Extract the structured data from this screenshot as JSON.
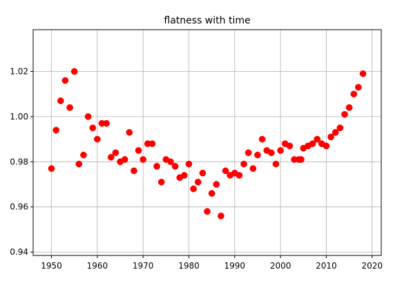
{
  "chart_data": {
    "type": "scatter",
    "title": "flatness with time",
    "xlabel": "",
    "ylabel": "",
    "xlim": [
      1946,
      2022
    ],
    "ylim": [
      0.9385,
      1.0385
    ],
    "xticks": [
      1950,
      1960,
      1970,
      1980,
      1990,
      2000,
      2010,
      2020
    ],
    "yticks": [
      0.94,
      0.96,
      0.98,
      1.0,
      1.02
    ],
    "ytick_labels": [
      "0.94",
      "0.96",
      "0.98",
      "1.00",
      "1.02"
    ],
    "grid": true,
    "series": [
      {
        "color": "#ff0000",
        "marker": "circle",
        "points": [
          [
            1950,
            0.977
          ],
          [
            1951,
            0.994
          ],
          [
            1952,
            1.007
          ],
          [
            1953,
            1.016
          ],
          [
            1954,
            1.004
          ],
          [
            1955,
            1.02
          ],
          [
            1956,
            0.979
          ],
          [
            1957,
            0.983
          ],
          [
            1958,
            1.0
          ],
          [
            1959,
            0.995
          ],
          [
            1960,
            0.99
          ],
          [
            1961,
            0.997
          ],
          [
            1962,
            0.997
          ],
          [
            1963,
            0.982
          ],
          [
            1964,
            0.984
          ],
          [
            1965,
            0.98
          ],
          [
            1966,
            0.981
          ],
          [
            1967,
            0.993
          ],
          [
            1968,
            0.976
          ],
          [
            1969,
            0.985
          ],
          [
            1970,
            0.981
          ],
          [
            1971,
            0.988
          ],
          [
            1972,
            0.988
          ],
          [
            1973,
            0.978
          ],
          [
            1974,
            0.971
          ],
          [
            1975,
            0.981
          ],
          [
            1976,
            0.98
          ],
          [
            1977,
            0.978
          ],
          [
            1978,
            0.973
          ],
          [
            1979,
            0.974
          ],
          [
            1980,
            0.979
          ],
          [
            1981,
            0.968
          ],
          [
            1982,
            0.971
          ],
          [
            1983,
            0.975
          ],
          [
            1984,
            0.958
          ],
          [
            1985,
            0.966
          ],
          [
            1986,
            0.97
          ],
          [
            1987,
            0.956
          ],
          [
            1988,
            0.976
          ],
          [
            1989,
            0.974
          ],
          [
            1990,
            0.975
          ],
          [
            1991,
            0.974
          ],
          [
            1992,
            0.979
          ],
          [
            1993,
            0.984
          ],
          [
            1994,
            0.977
          ],
          [
            1995,
            0.983
          ],
          [
            1996,
            0.99
          ],
          [
            1997,
            0.985
          ],
          [
            1998,
            0.984
          ],
          [
            1999,
            0.979
          ],
          [
            2000,
            0.985
          ],
          [
            2001,
            0.988
          ],
          [
            2002,
            0.987
          ],
          [
            2003,
            0.981
          ],
          [
            2004,
            0.981
          ],
          [
            2004.5,
            0.981
          ],
          [
            2005,
            0.986
          ],
          [
            2006,
            0.987
          ],
          [
            2007,
            0.988
          ],
          [
            2008,
            0.99
          ],
          [
            2009,
            0.988
          ],
          [
            2010,
            0.987
          ],
          [
            2011,
            0.991
          ],
          [
            2012,
            0.993
          ],
          [
            2013,
            0.995
          ],
          [
            2014,
            1.001
          ],
          [
            2015,
            1.004
          ],
          [
            2016,
            1.01
          ],
          [
            2017,
            1.013
          ],
          [
            2018,
            1.019
          ]
        ]
      }
    ]
  }
}
